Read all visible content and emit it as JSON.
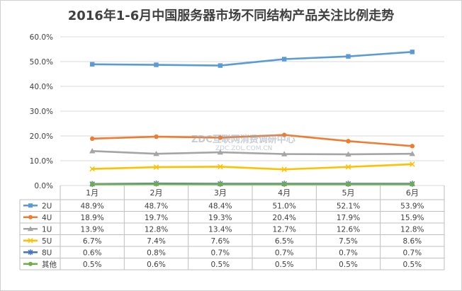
{
  "chart_data": {
    "type": "line",
    "title": "2016年1-6月中国服务器市场不同结构产品关注比例走势",
    "categories": [
      "1月",
      "2月",
      "3月",
      "4月",
      "5月",
      "6月"
    ],
    "ylim": [
      0,
      60
    ],
    "yticks": [
      "0.0%",
      "10.0%",
      "20.0%",
      "30.0%",
      "40.0%",
      "50.0%",
      "60.0%"
    ],
    "grid": true,
    "legend_placement": "data-table",
    "series": [
      {
        "name": "2U",
        "color": "#5b9bd5",
        "marker": "square",
        "values": [
          48.9,
          48.7,
          48.4,
          51.0,
          52.1,
          53.9
        ],
        "labels": [
          "48.9%",
          "48.7%",
          "48.4%",
          "51.0%",
          "52.1%",
          "53.9%"
        ]
      },
      {
        "name": "4U",
        "color": "#ed7d31",
        "marker": "circle",
        "values": [
          18.9,
          19.7,
          19.3,
          20.4,
          17.9,
          15.9
        ],
        "labels": [
          "18.9%",
          "19.7%",
          "19.3%",
          "20.4%",
          "17.9%",
          "15.9%"
        ]
      },
      {
        "name": "1U",
        "color": "#a5a5a5",
        "marker": "triangle",
        "values": [
          13.9,
          12.8,
          13.4,
          12.7,
          12.6,
          12.8
        ],
        "labels": [
          "13.9%",
          "12.8%",
          "13.4%",
          "12.7%",
          "12.6%",
          "12.8%"
        ]
      },
      {
        "name": "5U",
        "color": "#ffc000",
        "marker": "x",
        "values": [
          6.7,
          7.4,
          7.6,
          6.5,
          7.5,
          8.6
        ],
        "labels": [
          "6.7%",
          "7.4%",
          "7.6%",
          "6.5%",
          "7.5%",
          "8.6%"
        ]
      },
      {
        "name": "8U",
        "color": "#4472c4",
        "marker": "star",
        "values": [
          0.6,
          0.8,
          0.7,
          0.7,
          0.7,
          0.7
        ],
        "labels": [
          "0.6%",
          "0.8%",
          "0.7%",
          "0.7%",
          "0.7%",
          "0.7%"
        ]
      },
      {
        "name": "其他",
        "color": "#70ad47",
        "marker": "circle",
        "values": [
          0.5,
          0.6,
          0.5,
          0.5,
          0.5,
          0.5
        ],
        "labels": [
          "0.5%",
          "0.6%",
          "0.5%",
          "0.5%",
          "0.5%",
          "0.5%"
        ]
      }
    ]
  },
  "watermark": {
    "main": "ZDC互联网消费调研中心",
    "sub": "ZDC.ZOL.COM.CN"
  }
}
